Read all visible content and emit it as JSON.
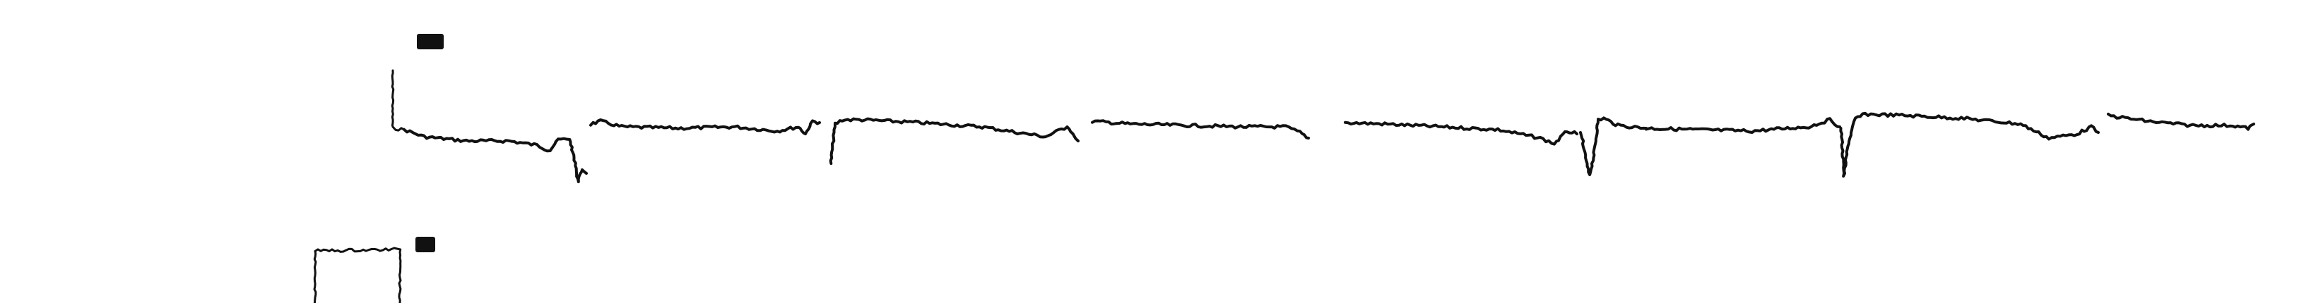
{
  "colors": {
    "background": "#ffffff",
    "ink": "#111111"
  },
  "marks": [
    {
      "name": "channel-1-marker-blot"
    },
    {
      "name": "channel-2-marker-blot"
    }
  ],
  "traces": [
    {
      "name": "channel-1-calibration-step"
    },
    {
      "name": "channel-1-trace-segment-1"
    },
    {
      "name": "channel-1-trace-segment-2"
    },
    {
      "name": "channel-1-trace-segment-3"
    },
    {
      "name": "channel-1-trace-segment-4"
    },
    {
      "name": "channel-1-trace-segment-5"
    },
    {
      "name": "channel-1-trace-segment-6"
    },
    {
      "name": "channel-1-trace-segment-7"
    },
    {
      "name": "channel-1-trace-segment-8"
    },
    {
      "name": "channel-1-trace-segment-9"
    },
    {
      "name": "channel-2-calibration-pulse"
    }
  ]
}
